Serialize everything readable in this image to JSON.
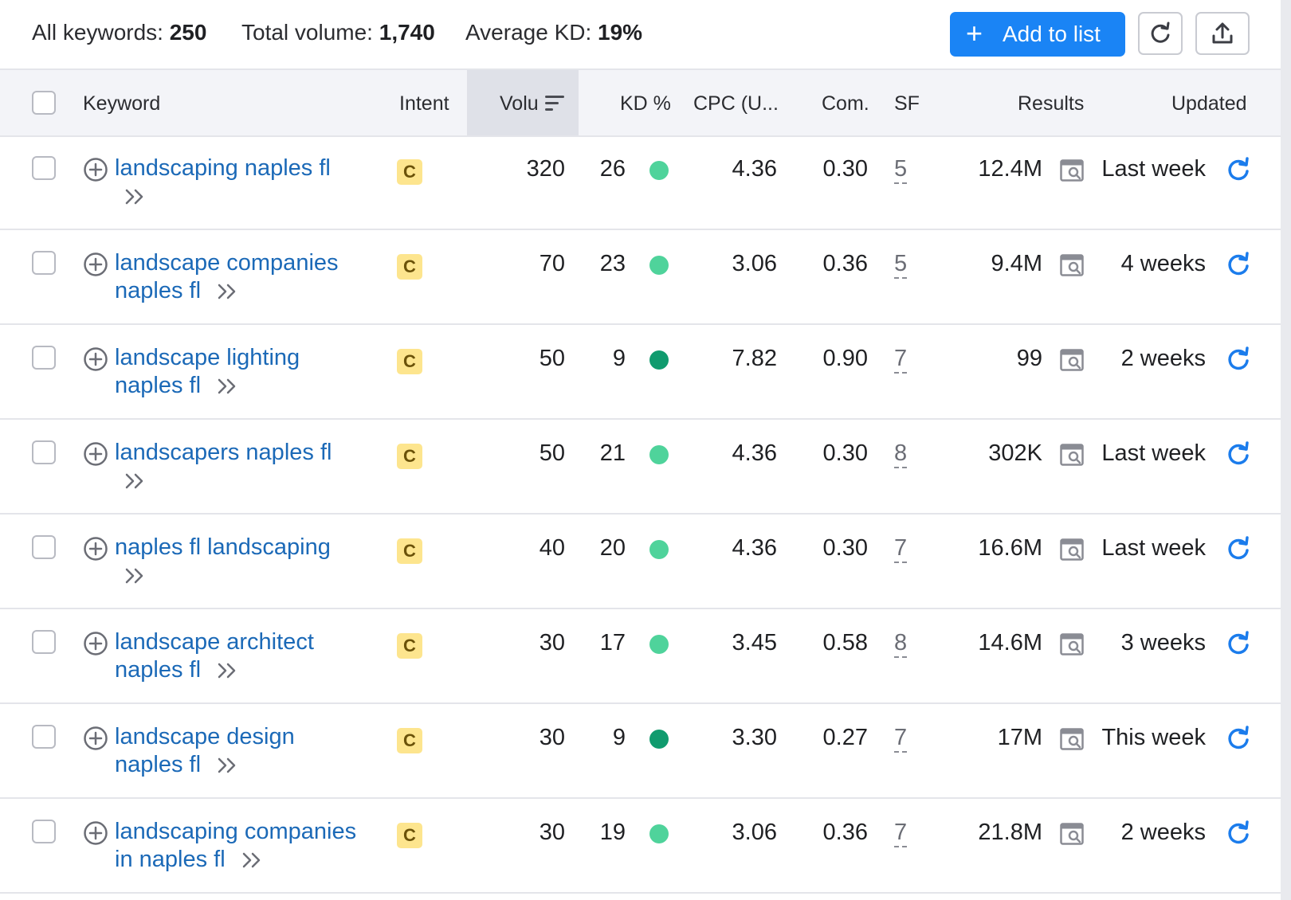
{
  "summary": {
    "all_keywords_label": "All keywords:",
    "all_keywords_value": "250",
    "total_volume_label": "Total volume:",
    "total_volume_value": "1,740",
    "average_kd_label": "Average KD:",
    "average_kd_value": "19%"
  },
  "toolbar": {
    "add_to_list_label": "Add to list",
    "plus_symbol": "+",
    "refresh_icon": "refresh-icon",
    "export_icon": "export-icon"
  },
  "columns": {
    "keyword": "Keyword",
    "intent": "Intent",
    "volume": "Volu",
    "kd": "KD %",
    "cpc": "CPC (U...",
    "com": "Com.",
    "sf": "SF",
    "results": "Results",
    "updated": "Updated"
  },
  "colors": {
    "link": "#1b69b7",
    "primary_button": "#1a84f5",
    "kd_light_green": "#4fd39b",
    "kd_dark_green": "#109b6e",
    "intent_badge": "#fde58e"
  },
  "rows": [
    {
      "keyword_lines": [
        "landscaping naples fl",
        ""
      ],
      "intent": "C",
      "volume": "320",
      "kd": "26",
      "kd_level": "easy",
      "cpc": "4.36",
      "com": "0.30",
      "sf": "5",
      "results": "12.4M",
      "updated": "Last week"
    },
    {
      "keyword_lines": [
        "landscape companies",
        "naples fl"
      ],
      "intent": "C",
      "volume": "70",
      "kd": "23",
      "kd_level": "easy",
      "cpc": "3.06",
      "com": "0.36",
      "sf": "5",
      "results": "9.4M",
      "updated": "4 weeks"
    },
    {
      "keyword_lines": [
        "landscape lighting",
        "naples fl"
      ],
      "intent": "C",
      "volume": "50",
      "kd": "9",
      "kd_level": "very-easy",
      "cpc": "7.82",
      "com": "0.90",
      "sf": "7",
      "results": "99",
      "updated": "2 weeks"
    },
    {
      "keyword_lines": [
        "landscapers naples fl",
        ""
      ],
      "intent": "C",
      "volume": "50",
      "kd": "21",
      "kd_level": "easy",
      "cpc": "4.36",
      "com": "0.30",
      "sf": "8",
      "results": "302K",
      "updated": "Last week"
    },
    {
      "keyword_lines": [
        "naples fl landscaping",
        ""
      ],
      "intent": "C",
      "volume": "40",
      "kd": "20",
      "kd_level": "easy",
      "cpc": "4.36",
      "com": "0.30",
      "sf": "7",
      "results": "16.6M",
      "updated": "Last week"
    },
    {
      "keyword_lines": [
        "landscape architect",
        "naples fl"
      ],
      "intent": "C",
      "volume": "30",
      "kd": "17",
      "kd_level": "easy",
      "cpc": "3.45",
      "com": "0.58",
      "sf": "8",
      "results": "14.6M",
      "updated": "3 weeks"
    },
    {
      "keyword_lines": [
        "landscape design",
        "naples fl"
      ],
      "intent": "C",
      "volume": "30",
      "kd": "9",
      "kd_level": "very-easy",
      "cpc": "3.30",
      "com": "0.27",
      "sf": "7",
      "results": "17M",
      "updated": "This week"
    },
    {
      "keyword_lines": [
        "landscaping companies",
        "in naples fl"
      ],
      "intent": "C",
      "volume": "30",
      "kd": "19",
      "kd_level": "easy",
      "cpc": "3.06",
      "com": "0.36",
      "sf": "7",
      "results": "21.8M",
      "updated": "2 weeks"
    }
  ]
}
